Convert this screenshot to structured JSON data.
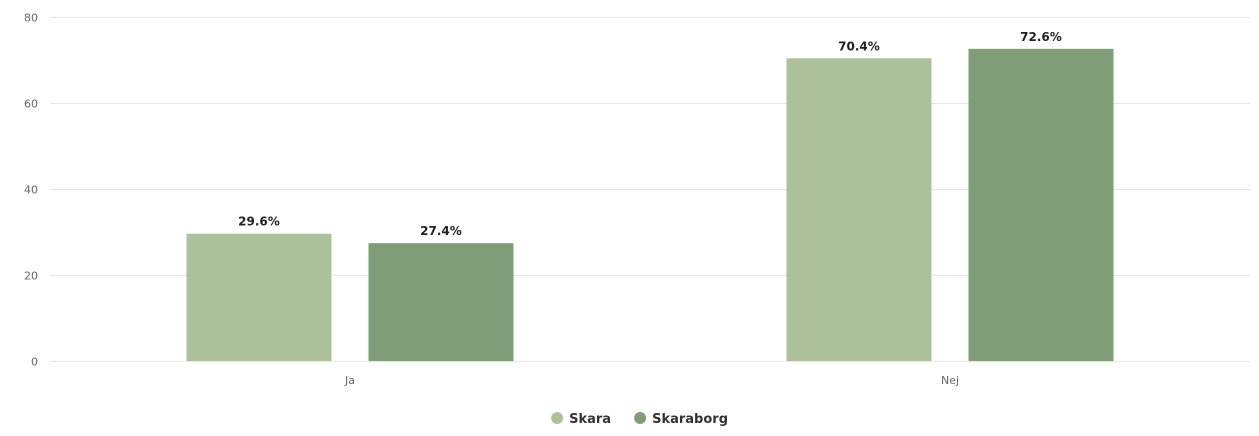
{
  "chart_data": {
    "type": "bar",
    "title": "",
    "xlabel": "",
    "ylabel": "",
    "categories": [
      "Ja",
      "Nej"
    ],
    "ylim": [
      0,
      80
    ],
    "yticks": [
      0,
      20,
      40,
      60,
      80
    ],
    "grid": true,
    "legend_position": "bottom-center",
    "series": [
      {
        "name": "Skara",
        "color": "#adc29a",
        "values": [
          29.6,
          70.4
        ],
        "labels": [
          "29.6%",
          "70.4%"
        ]
      },
      {
        "name": "Skaraborg",
        "color": "#7f9e78",
        "values": [
          27.4,
          72.6
        ],
        "labels": [
          "27.4%",
          "72.6%"
        ]
      }
    ]
  }
}
